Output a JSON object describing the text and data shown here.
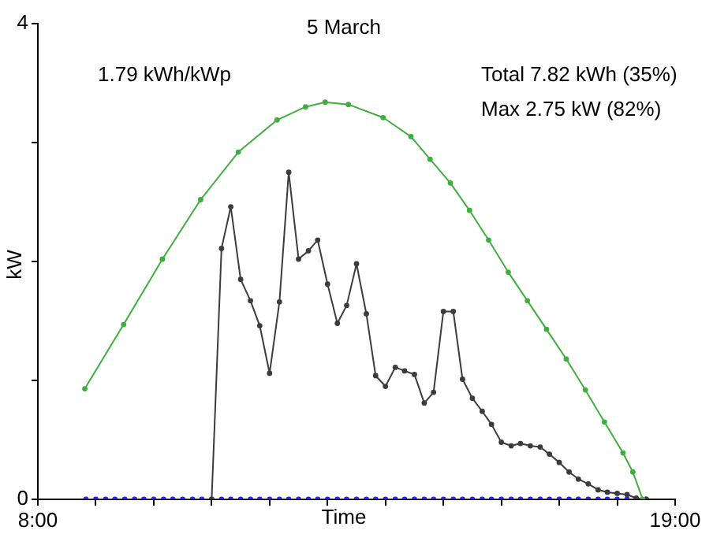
{
  "chart_data": {
    "type": "line",
    "title": "5 March",
    "xlabel": "Time",
    "ylabel": "kW",
    "annotations": [
      "1.79 kWh/kWp",
      "Total 7.82 kWh (35%)",
      "Max 2.75 kW (82%)"
    ],
    "xlim": [
      8,
      19
    ],
    "xticks": [
      {
        "value": 8,
        "label": "8:00"
      },
      {
        "value": 9,
        "label": null
      },
      {
        "value": 10,
        "label": null
      },
      {
        "value": 11,
        "label": null
      },
      {
        "value": 12,
        "label": null
      },
      {
        "value": 13,
        "label": null
      },
      {
        "value": 14,
        "label": null
      },
      {
        "value": 15,
        "label": null
      },
      {
        "value": 16,
        "label": null
      },
      {
        "value": 17,
        "label": null
      },
      {
        "value": 18,
        "label": null
      },
      {
        "value": 19,
        "label": "19:00"
      }
    ],
    "ylim": [
      0,
      4
    ],
    "yticks": [
      0,
      {
        "value": 1,
        "label": null
      },
      {
        "value": 2,
        "label": null
      },
      {
        "value": 3,
        "label": null
      },
      4
    ],
    "grid": false,
    "legend": false,
    "marker": "circle",
    "line_style": "solid",
    "series": [
      {
        "color": "#3fae3f",
        "x": [
          8.81,
          9.48,
          10.15,
          10.81,
          11.46,
          12.13,
          12.62,
          12.96,
          13.36,
          13.96,
          14.44,
          14.77,
          15.12,
          15.45,
          15.78,
          16.12,
          16.45,
          16.78,
          17.12,
          17.45,
          17.78,
          18.1,
          18.27,
          18.44
        ],
        "values": [
          0.93,
          1.47,
          2.02,
          2.52,
          2.92,
          3.19,
          3.3,
          3.34,
          3.32,
          3.21,
          3.05,
          2.86,
          2.66,
          2.43,
          2.18,
          1.91,
          1.67,
          1.43,
          1.18,
          0.92,
          0.65,
          0.39,
          0.23,
          0
        ]
      },
      {
        "color": "#3c3c3c",
        "x": [
          11,
          11.17,
          11.33,
          11.5,
          11.67,
          11.83,
          12,
          12.17,
          12.33,
          12.5,
          12.67,
          12.83,
          13,
          13.17,
          13.33,
          13.5,
          13.67,
          13.83,
          14,
          14.17,
          14.33,
          14.5,
          14.67,
          14.83,
          15,
          15.17,
          15.33,
          15.5,
          15.67,
          15.83,
          16,
          16.17,
          16.33,
          16.5,
          16.67,
          16.83,
          17,
          17.17,
          17.33,
          17.5,
          17.67,
          17.83,
          18,
          18.17,
          18.33,
          18.5
        ],
        "values": [
          0,
          2.11,
          2.46,
          1.85,
          1.67,
          1.46,
          1.06,
          1.66,
          2.75,
          2.02,
          2.09,
          2.18,
          1.81,
          1.48,
          1.63,
          1.98,
          1.56,
          1.04,
          0.95,
          1.11,
          1.08,
          1.05,
          0.81,
          0.9,
          1.58,
          1.58,
          1.01,
          0.85,
          0.74,
          0.63,
          0.48,
          0.45,
          0.47,
          0.45,
          0.44,
          0.38,
          0.31,
          0.23,
          0.17,
          0.13,
          0.08,
          0.06,
          0.05,
          0.04,
          0.01,
          0
        ]
      },
      {
        "color": "#2020ff",
        "x": [
          8.83,
          9,
          9.17,
          9.33,
          9.5,
          9.67,
          9.83,
          10,
          10.17,
          10.33,
          10.5,
          10.67,
          10.83,
          11,
          11.17,
          11.33,
          11.5,
          11.67,
          11.83,
          12,
          12.17,
          12.33,
          12.5,
          12.67,
          12.83,
          13,
          13.17,
          13.33,
          13.5,
          13.67,
          13.83,
          14,
          14.17,
          14.33,
          14.5,
          14.67,
          14.83,
          15,
          15.17,
          15.33,
          15.5,
          15.67,
          15.83,
          16,
          16.17,
          16.33,
          16.5,
          16.67,
          16.83,
          17,
          17.17,
          17.33,
          17.5,
          17.67,
          17.83,
          18,
          18.17,
          18.33,
          18.5
        ],
        "values": [
          0,
          0,
          0,
          0,
          0,
          0,
          0,
          0,
          0,
          0,
          0,
          0,
          0,
          0,
          0,
          0,
          0,
          0,
          0,
          0,
          0,
          0,
          0,
          0,
          0,
          0,
          0,
          0,
          0,
          0,
          0,
          0,
          0,
          0,
          0,
          0,
          0,
          0,
          0,
          0,
          0,
          0,
          0,
          0,
          0,
          0,
          0,
          0,
          0,
          0,
          0,
          0,
          0,
          0,
          0,
          0,
          0,
          0,
          0
        ]
      }
    ]
  }
}
